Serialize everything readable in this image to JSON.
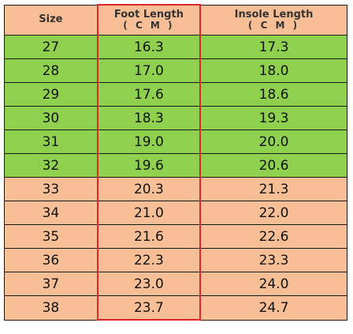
{
  "table": {
    "headers": {
      "size": "Size",
      "foot": "Foot Length",
      "foot_unit": "( C M )",
      "insole": "Insole Length",
      "insole_unit": "( C M )"
    },
    "colors": {
      "header_bg": "#f8bf96",
      "green_row": "#8fd14f",
      "orange_row": "#f8bf96",
      "highlight_border": "#e0262a"
    },
    "rows": [
      {
        "size": "27",
        "foot": "16.3",
        "insole": "17.3",
        "color": "green"
      },
      {
        "size": "28",
        "foot": "17.0",
        "insole": "18.0",
        "color": "green"
      },
      {
        "size": "29",
        "foot": "17.6",
        "insole": "18.6",
        "color": "green"
      },
      {
        "size": "30",
        "foot": "18.3",
        "insole": "19.3",
        "color": "green"
      },
      {
        "size": "31",
        "foot": "19.0",
        "insole": "20.0",
        "color": "green"
      },
      {
        "size": "32",
        "foot": "19.6",
        "insole": "20.6",
        "color": "green"
      },
      {
        "size": "33",
        "foot": "20.3",
        "insole": "21.3",
        "color": "orange"
      },
      {
        "size": "34",
        "foot": "21.0",
        "insole": "22.0",
        "color": "orange"
      },
      {
        "size": "35",
        "foot": "21.6",
        "insole": "22.6",
        "color": "orange"
      },
      {
        "size": "36",
        "foot": "22.3",
        "insole": "23.3",
        "color": "orange"
      },
      {
        "size": "37",
        "foot": "23.0",
        "insole": "24.0",
        "color": "orange"
      },
      {
        "size": "38",
        "foot": "23.7",
        "insole": "24.7",
        "color": "orange"
      }
    ]
  }
}
